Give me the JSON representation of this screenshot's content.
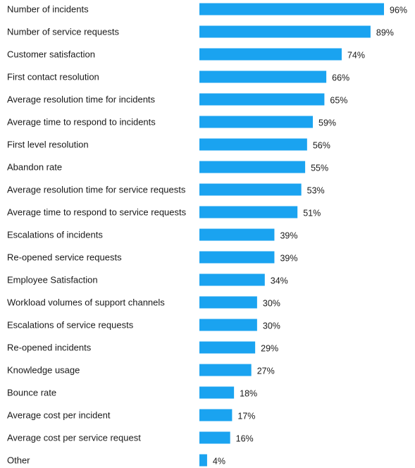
{
  "chart_data": {
    "type": "bar",
    "orientation": "horizontal",
    "categories": [
      "Number of incidents",
      "Number of service requests",
      "Customer satisfaction",
      "First contact resolution",
      "Average resolution time for incidents",
      "Average time to respond to incidents",
      "First level resolution",
      "Abandon rate",
      "Average resolution time for service requests",
      "Average time to respond to service requests",
      "Escalations of incidents",
      "Re-opened service requests",
      "Employee Satisfaction",
      "Workload volumes of support channels",
      "Escalations of service requests",
      "Re-opened incidents",
      "Knowledge usage",
      "Bounce rate",
      "Average cost per incident",
      "Average cost per service request",
      "Other"
    ],
    "values": [
      96,
      89,
      74,
      66,
      65,
      59,
      56,
      55,
      53,
      51,
      39,
      39,
      34,
      30,
      30,
      29,
      27,
      18,
      17,
      16,
      4
    ],
    "value_labels": [
      "96%",
      "89%",
      "74%",
      "66%",
      "65%",
      "59%",
      "56%",
      "55%",
      "53%",
      "51%",
      "39%",
      "39%",
      "34%",
      "30%",
      "30%",
      "29%",
      "27%",
      "18%",
      "17%",
      "16%",
      "4%"
    ],
    "unit": "%",
    "title": "",
    "xlabel": "",
    "ylabel": "",
    "xlim": [
      0,
      100
    ],
    "grid": false,
    "legend": "none",
    "bar_color": "#1aa3f0",
    "text_color": "#1a1a1a"
  }
}
